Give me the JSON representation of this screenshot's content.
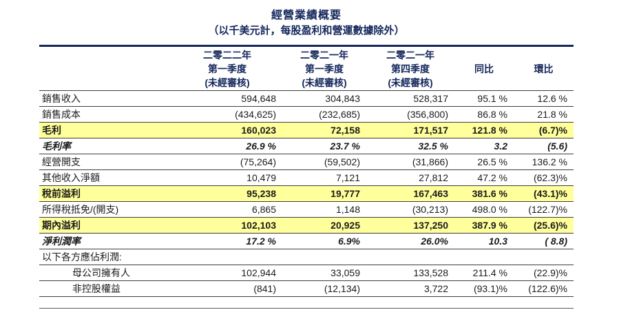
{
  "report": {
    "title": "經營業績概要",
    "subtitle": "（以千美元計，每股盈利和營運數據除外）"
  },
  "colors": {
    "navy": "#13265B",
    "highlight": "#FFFF9C",
    "rule": "#3D3D3D"
  },
  "table": {
    "columns": [
      {
        "line1": "二零二二年",
        "line2": "第一季度",
        "line3": "(未經審核)"
      },
      {
        "line1": "二零二一年",
        "line2": "第一季度",
        "line3": "(未經審核)"
      },
      {
        "line1": "二零二一年",
        "line2": "第四季度",
        "line3": "(未經審核)"
      },
      {
        "line1": "同比"
      },
      {
        "line1": "環比"
      }
    ],
    "rows": [
      {
        "label": "銷售收入",
        "values": [
          "594,648",
          "304,843",
          "528,317",
          "95.1 %",
          "12.6 %"
        ],
        "style": "normal"
      },
      {
        "label": "銷售成本",
        "values": [
          "(434,625)",
          "(232,685)",
          "(356,800)",
          "86.8 %",
          "21.8 %"
        ],
        "style": "normal"
      },
      {
        "label": "毛利",
        "values": [
          "160,023",
          "72,158",
          "171,517",
          "121.8 %",
          "(6.7)%"
        ],
        "style": "highlight"
      },
      {
        "label": "毛利率",
        "values": [
          "26.9 %",
          "23.7 %",
          "32.5 %",
          "3.2",
          "(5.6)"
        ],
        "style": "italic"
      },
      {
        "label": "經營開支",
        "values": [
          "(75,264)",
          "(59,502)",
          "(31,866)",
          "26.5 %",
          "136.2 %"
        ],
        "style": "normal"
      },
      {
        "label": "其他收入淨額",
        "values": [
          "10,479",
          "7,121",
          "27,812",
          "47.2 %",
          "(62.3)%"
        ],
        "style": "normal"
      },
      {
        "label": "稅前溢利",
        "values": [
          "95,238",
          "19,777",
          "167,463",
          "381.6 %",
          "(43.1)%"
        ],
        "style": "highlight"
      },
      {
        "label": "所得稅抵免/(開支)",
        "values": [
          "6,865",
          "1,148",
          "(30,213)",
          "498.0 %",
          "(122.7)%"
        ],
        "style": "normal"
      },
      {
        "label": "期內溢利",
        "values": [
          "102,103",
          "20,925",
          "137,250",
          "387.9 %",
          "(25.6)%"
        ],
        "style": "highlight"
      },
      {
        "label": "淨利潤率",
        "values": [
          "17.2 %",
          "6.9%",
          "26.0%",
          "10.3",
          "( 8.8)"
        ],
        "style": "italic"
      },
      {
        "label": "以下各方應佔利潤:",
        "values": [
          "",
          "",
          "",
          "",
          ""
        ],
        "style": "section"
      },
      {
        "label": "母公司擁有人",
        "values": [
          "102,944",
          "33,059",
          "133,528",
          "211.4 %",
          "(22.9)%"
        ],
        "style": "indent"
      },
      {
        "label": "非控股權益",
        "values": [
          "(841)",
          "(12,134)",
          "3,722",
          "(93.1)%",
          "(122.6)%"
        ],
        "style": "indent"
      }
    ]
  }
}
